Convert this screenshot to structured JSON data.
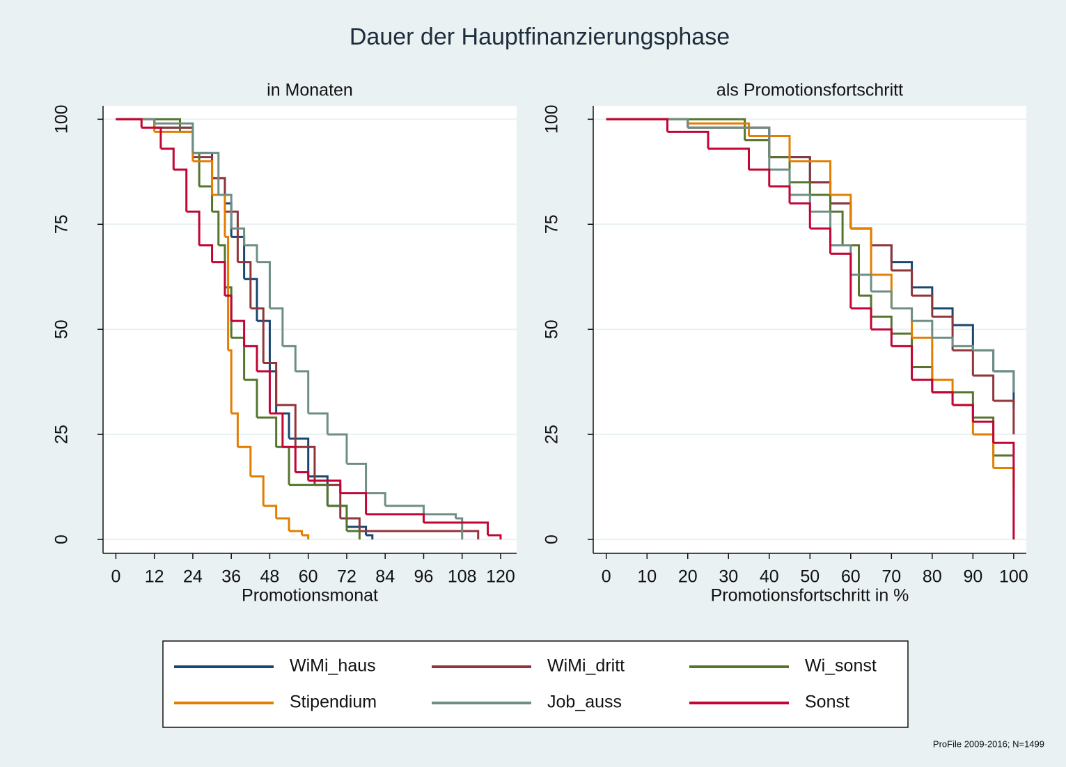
{
  "title": "Dauer der Hauptfinanzierungsphase",
  "note": "ProFile 2009-2016; N=1499",
  "legend": {
    "position": "bottom",
    "columns": 3
  },
  "chart_data": [
    {
      "type": "line",
      "drawstyle": "steps-post",
      "subtitle": "in Monaten",
      "xlabel": "Promotionsmonat",
      "xlim": [
        -4,
        125
      ],
      "xticks": [
        0,
        12,
        24,
        36,
        48,
        60,
        72,
        84,
        96,
        108,
        120
      ],
      "ylim": [
        -3.3,
        103.2
      ],
      "yticks": [
        0,
        25,
        50,
        75,
        100
      ],
      "grid": true,
      "series": [
        {
          "name": "WiMi_haus",
          "color": "#1a476f",
          "x": [
            0,
            12,
            24,
            30,
            34,
            36,
            40,
            44,
            48,
            50,
            54,
            60,
            66,
            72,
            78,
            80
          ],
          "values": [
            100,
            98,
            92,
            86,
            80,
            72,
            62,
            52,
            40,
            30,
            24,
            15,
            8,
            3,
            1,
            0
          ]
        },
        {
          "name": "WiMi_dritt",
          "color": "#90353b",
          "x": [
            0,
            12,
            24,
            30,
            34,
            38,
            42,
            46,
            50,
            56,
            62,
            70,
            76,
            113
          ],
          "values": [
            100,
            98,
            91,
            86,
            78,
            66,
            55,
            42,
            32,
            22,
            13,
            5,
            2,
            0
          ]
        },
        {
          "name": "Wi_sonst",
          "color": "#55752f",
          "x": [
            0,
            20,
            24,
            26,
            30,
            32,
            34,
            36,
            40,
            44,
            50,
            54,
            62,
            66,
            72,
            76
          ],
          "values": [
            100,
            97,
            92,
            84,
            78,
            70,
            60,
            48,
            38,
            29,
            22,
            13,
            13,
            8,
            2,
            0
          ]
        },
        {
          "name": "Stipendium",
          "color": "#e37e00",
          "x": [
            0,
            12,
            24,
            30,
            34,
            35,
            36,
            38,
            42,
            46,
            50,
            54,
            58,
            60
          ],
          "values": [
            100,
            97,
            90,
            82,
            72,
            45,
            30,
            22,
            15,
            8,
            5,
            2,
            1,
            0
          ]
        },
        {
          "name": "Job_auss",
          "color": "#6e8e84",
          "x": [
            0,
            12,
            24,
            32,
            36,
            40,
            44,
            48,
            52,
            56,
            60,
            66,
            72,
            78,
            84,
            96,
            106,
            108
          ],
          "values": [
            100,
            99,
            92,
            82,
            74,
            70,
            66,
            55,
            46,
            40,
            30,
            25,
            18,
            11,
            8,
            6,
            5,
            0
          ]
        },
        {
          "name": "Sonst",
          "color": "#c10534",
          "x": [
            0,
            8,
            14,
            18,
            22,
            26,
            30,
            34,
            36,
            40,
            44,
            48,
            52,
            56,
            60,
            70,
            78,
            96,
            116,
            120
          ],
          "values": [
            100,
            98,
            93,
            88,
            78,
            70,
            66,
            58,
            52,
            46,
            40,
            30,
            22,
            16,
            14,
            11,
            6,
            4,
            1,
            0
          ]
        }
      ]
    },
    {
      "type": "line",
      "drawstyle": "steps-post",
      "subtitle": "als Promotionsfortschritt",
      "xlabel": "Promotionsfortschritt in %",
      "xlim": [
        -3.2,
        103.1
      ],
      "xticks": [
        0,
        10,
        20,
        30,
        40,
        50,
        60,
        70,
        80,
        90,
        100
      ],
      "ylim": [
        -3.3,
        103.2
      ],
      "yticks": [
        0,
        25,
        50,
        75,
        100
      ],
      "grid": true,
      "series": [
        {
          "color": "#1a476f",
          "x": [
            0,
            20,
            40,
            50,
            55,
            60,
            65,
            70,
            75,
            80,
            85,
            90,
            95,
            100
          ],
          "values": [
            100,
            98,
            91,
            85,
            80,
            74,
            70,
            66,
            60,
            55,
            51,
            45,
            40,
            31
          ]
        },
        {
          "color": "#90353b",
          "x": [
            0,
            20,
            40,
            50,
            55,
            60,
            65,
            70,
            75,
            80,
            85,
            90,
            95,
            100
          ],
          "values": [
            100,
            98,
            91,
            85,
            80,
            74,
            70,
            64,
            58,
            53,
            45,
            39,
            33,
            25
          ]
        },
        {
          "color": "#55752f",
          "x": [
            0,
            33,
            34,
            40,
            45,
            50,
            55,
            58,
            62,
            65,
            70,
            75,
            80,
            85,
            90,
            95,
            100
          ],
          "values": [
            100,
            100,
            95,
            91,
            85,
            82,
            78,
            70,
            58,
            53,
            49,
            41,
            35,
            35,
            29,
            20,
            20
          ]
        },
        {
          "color": "#e37e00",
          "x": [
            0,
            20,
            35,
            45,
            55,
            60,
            65,
            70,
            75,
            80,
            85,
            90,
            95,
            100
          ],
          "values": [
            100,
            99,
            96,
            90,
            82,
            74,
            63,
            55,
            48,
            38,
            32,
            25,
            17,
            12
          ]
        },
        {
          "color": "#6e8e84",
          "x": [
            0,
            20,
            40,
            45,
            50,
            55,
            60,
            65,
            70,
            75,
            80,
            85,
            90,
            95,
            100
          ],
          "values": [
            100,
            98,
            88,
            82,
            78,
            70,
            63,
            59,
            55,
            52,
            48,
            46,
            45,
            40,
            35
          ]
        },
        {
          "color": "#c10534",
          "x": [
            0,
            15,
            25,
            35,
            40,
            45,
            50,
            55,
            60,
            65,
            70,
            75,
            80,
            85,
            90,
            95,
            100,
            100
          ],
          "values": [
            100,
            97,
            93,
            88,
            84,
            80,
            74,
            68,
            55,
            50,
            46,
            38,
            35,
            32,
            28,
            23,
            20,
            0
          ]
        }
      ]
    }
  ]
}
